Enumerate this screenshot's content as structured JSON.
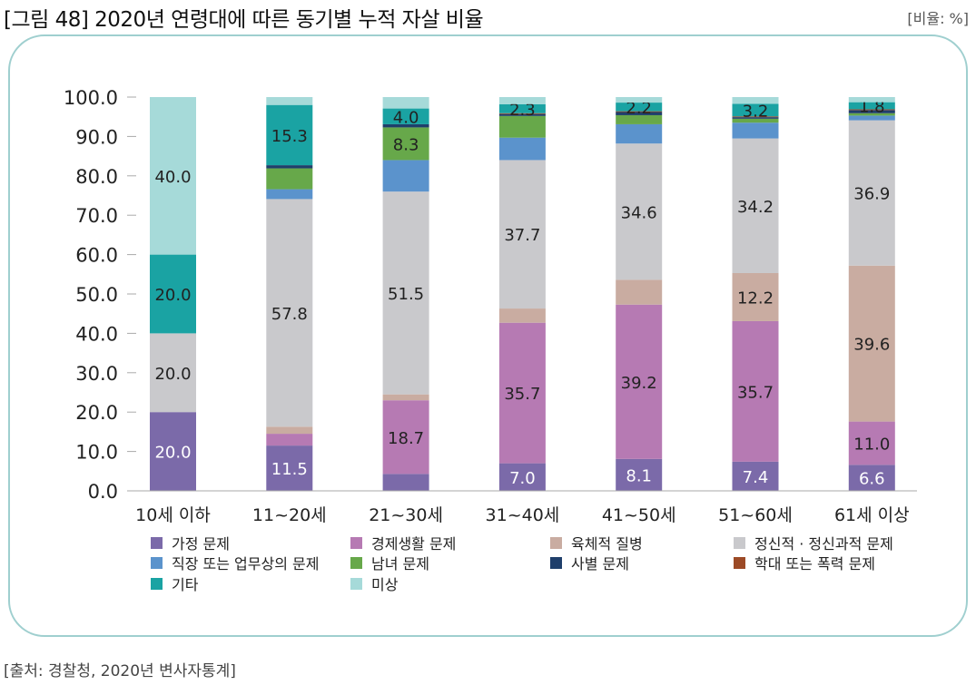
{
  "header": {
    "title": "[그림 48] 2020년 연령대에 따른 동기별 누적 자살 비율",
    "unit": "[비율: %]"
  },
  "footer": {
    "source": "[출처: 경찰청, 2020년 변사자통계]"
  },
  "chart_data": {
    "type": "bar",
    "stacked": true,
    "title": "[그림 48] 2020년 연령대에 따른 동기별 누적 자살 비율",
    "ylabel": "",
    "xlabel": "",
    "ylim": [
      0,
      100
    ],
    "yticks": [
      "0.0",
      "10.0",
      "20.0",
      "30.0",
      "40.0",
      "50.0",
      "60.0",
      "70.0",
      "80.0",
      "90.0",
      "100.0"
    ],
    "grid": false,
    "legend_position": "bottom",
    "categories": [
      "10세 이하",
      "11~20세",
      "21~30세",
      "31~40세",
      "41~50세",
      "51~60세",
      "61세 이상"
    ],
    "series": [
      {
        "name": "가정 문제",
        "color": "#7b6aa9",
        "values": [
          20.0,
          11.5,
          4.3,
          7.0,
          8.1,
          7.4,
          6.6
        ],
        "labels": [
          "20.0",
          "11.5",
          "",
          "7.0",
          "8.1",
          "7.4",
          "6.6"
        ]
      },
      {
        "name": "경제생활 문제",
        "color": "#b67ab3",
        "values": [
          0.0,
          3.0,
          18.7,
          35.7,
          39.2,
          35.7,
          11.0
        ],
        "labels": [
          "",
          "",
          "18.7",
          "35.7",
          "39.2",
          "35.7",
          "11.0"
        ]
      },
      {
        "name": "육체적 질병",
        "color": "#c9aca1",
        "values": [
          0.0,
          1.8,
          1.5,
          3.6,
          6.3,
          12.2,
          39.6
        ],
        "labels": [
          "",
          "",
          "",
          "",
          "",
          "12.2",
          "39.6"
        ]
      },
      {
        "name": "정신적 · 정신과적 문제",
        "color": "#c9c9cc",
        "values": [
          20.0,
          57.8,
          51.5,
          37.7,
          34.6,
          34.2,
          36.9
        ],
        "labels": [
          "20.0",
          "57.8",
          "51.5",
          "37.7",
          "34.6",
          "34.2",
          "36.9"
        ]
      },
      {
        "name": "직장 또는 업무상의 문제",
        "color": "#5b93cc",
        "values": [
          0.0,
          2.5,
          8.0,
          5.7,
          4.9,
          4.0,
          1.2
        ],
        "labels": [
          "",
          "",
          "",
          "",
          "",
          "",
          ""
        ]
      },
      {
        "name": "남녀 문제",
        "color": "#67a84a",
        "values": [
          0.0,
          5.3,
          8.3,
          5.5,
          2.3,
          1.0,
          0.6
        ],
        "labels": [
          "",
          "",
          "8.3",
          "",
          "",
          "",
          ""
        ]
      },
      {
        "name": "사별 문제",
        "color": "#1f3f6b",
        "values": [
          0.0,
          0.8,
          0.8,
          0.5,
          0.8,
          0.4,
          0.8
        ],
        "labels": [
          "",
          "",
          "",
          "",
          "",
          "",
          ""
        ]
      },
      {
        "name": "학대 또는 폭력 문제",
        "color": "#9c4a26",
        "values": [
          0.0,
          0.0,
          0.0,
          0.2,
          0.2,
          0.2,
          0.2
        ],
        "labels": [
          "",
          "",
          "",
          "",
          "",
          "",
          ""
        ]
      },
      {
        "name": "기타",
        "color": "#1aa3a3",
        "values": [
          20.0,
          15.3,
          4.0,
          2.3,
          2.2,
          3.2,
          1.8
        ],
        "labels": [
          "20.0",
          "15.3",
          "4.0",
          "2.3",
          "2.2",
          "3.2",
          "1.8"
        ]
      },
      {
        "name": "미상",
        "color": "#a6dad9",
        "values": [
          40.0,
          2.0,
          2.9,
          1.8,
          1.4,
          1.7,
          1.3
        ],
        "labels": [
          "40.0",
          "",
          "",
          "",
          "",
          "",
          ""
        ]
      }
    ]
  }
}
